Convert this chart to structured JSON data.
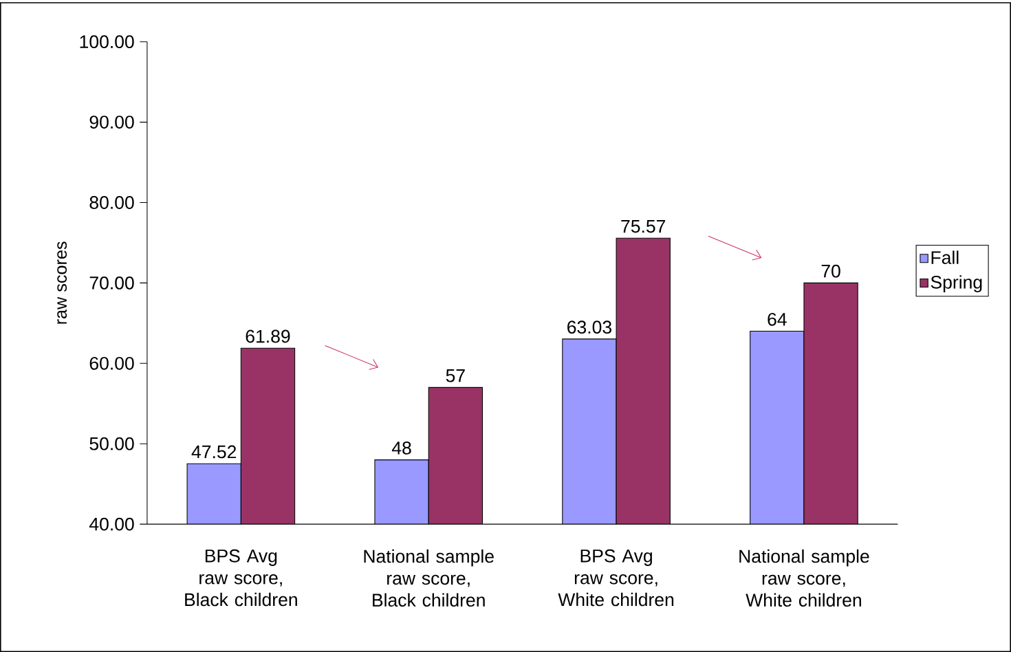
{
  "chart_data": {
    "type": "bar",
    "ylabel": "raw scores",
    "categories": [
      "BPS Avg raw score, Black children",
      "National sample raw score, Black children",
      "BPS Avg raw score, White children",
      "National sample raw score, White children"
    ],
    "series": [
      {
        "name": "Fall",
        "color": "#9999ff",
        "values": [
          47.52,
          48,
          63.03,
          64
        ]
      },
      {
        "name": "Spring",
        "color": "#993366",
        "values": [
          61.89,
          57,
          75.57,
          70
        ]
      }
    ],
    "ylim": [
      40,
      100
    ],
    "yticks": [
      {
        "value": 40,
        "label": "40.00"
      },
      {
        "value": 50,
        "label": "50.00"
      },
      {
        "value": 60,
        "label": "60.00"
      },
      {
        "value": 70,
        "label": "70.00"
      },
      {
        "value": 80,
        "label": "80.00"
      },
      {
        "value": 90,
        "label": "90.00"
      },
      {
        "value": 100,
        "label": "100.00"
      }
    ],
    "data_labels": true,
    "legend": "right",
    "grid": false
  }
}
